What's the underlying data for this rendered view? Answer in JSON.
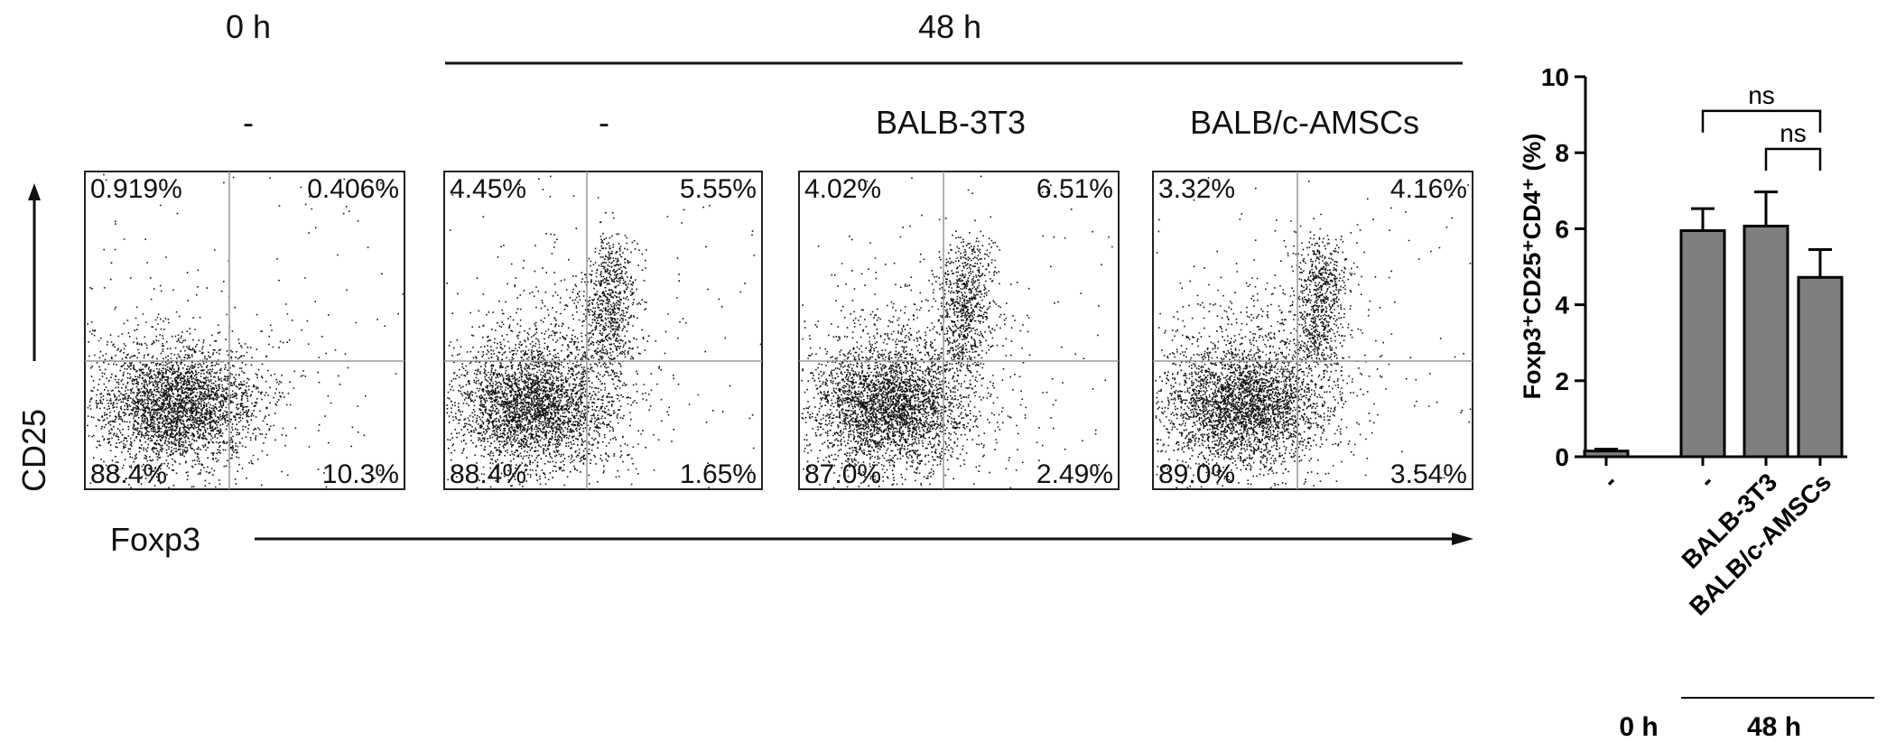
{
  "header": {
    "time_0": "0 h",
    "time_48": "48 h"
  },
  "flow": {
    "panels": [
      {
        "condition": "-",
        "q_ul": "0.919%",
        "q_ur": "0.406%",
        "q_ll": "88.4%",
        "q_lr": "10.3%"
      },
      {
        "condition": "-",
        "q_ul": "4.45%",
        "q_ur": "5.55%",
        "q_ll": "88.4%",
        "q_lr": "1.65%"
      },
      {
        "condition": "BALB-3T3",
        "q_ul": "4.02%",
        "q_ur": "6.51%",
        "q_ll": "87.0%",
        "q_lr": "2.49%"
      },
      {
        "condition": "BALB/c-AMSCs",
        "q_ul": "3.32%",
        "q_ur": "4.16%",
        "q_ll": "89.0%",
        "q_lr": "3.54%"
      }
    ],
    "y_axis_label": "CD25",
    "x_axis_label": "Foxp3"
  },
  "chart_data": {
    "type": "bar",
    "categories": [
      "-",
      "-",
      "BALB-3T3",
      "BALB/c-AMSCs"
    ],
    "values": [
      0.15,
      5.95,
      6.07,
      4.72
    ],
    "error": [
      0.05,
      0.58,
      0.9,
      0.73
    ],
    "ylim": [
      0,
      10
    ],
    "yticks": [
      0,
      2,
      4,
      6,
      8,
      10
    ],
    "ylabel": "Foxp3⁺CD25⁺CD4⁺ (%)",
    "group_labels": [
      "0 h",
      "48 h"
    ],
    "significance": [
      {
        "from": 1,
        "to": 3,
        "label": "ns"
      },
      {
        "from": 2,
        "to": 3,
        "label": "ns"
      }
    ],
    "bar_color": "#7f7f7f",
    "first_bar_color": "#7f7f7f"
  }
}
